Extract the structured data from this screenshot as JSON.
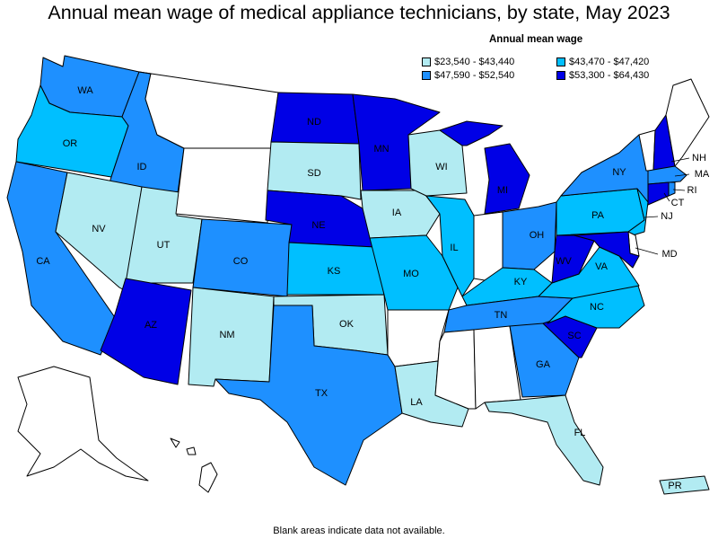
{
  "title": "Annual mean wage of medical appliance technicians, by state, May 2023",
  "footnote": "Blank areas indicate data not available.",
  "legend": {
    "title": "Annual mean wage",
    "items": [
      {
        "label": "$23,540 - $43,440",
        "color": "#b2ebf2"
      },
      {
        "label": "$43,470 - $47,420",
        "color": "#00bfff"
      },
      {
        "label": "$47,590 - $52,540",
        "color": "#1e90ff"
      },
      {
        "label": "$53,300 - $64,430",
        "color": "#0000e6"
      }
    ]
  },
  "colors": {
    "no_data": "#ffffff",
    "tier1": "#b2ebf2",
    "tier2": "#00bfff",
    "tier3": "#1e90ff",
    "tier4": "#0000e6",
    "border": "#000000"
  },
  "states": [
    {
      "abbr": "WA",
      "tier": "tier3"
    },
    {
      "abbr": "OR",
      "tier": "tier2"
    },
    {
      "abbr": "CA",
      "tier": "tier3"
    },
    {
      "abbr": "ID",
      "tier": "tier3"
    },
    {
      "abbr": "NV",
      "tier": "tier1"
    },
    {
      "abbr": "UT",
      "tier": "tier1"
    },
    {
      "abbr": "AZ",
      "tier": "tier4"
    },
    {
      "abbr": "CO",
      "tier": "tier3"
    },
    {
      "abbr": "NM",
      "tier": "tier1"
    },
    {
      "abbr": "ND",
      "tier": "tier4"
    },
    {
      "abbr": "SD",
      "tier": "tier1"
    },
    {
      "abbr": "NE",
      "tier": "tier4"
    },
    {
      "abbr": "KS",
      "tier": "tier2"
    },
    {
      "abbr": "OK",
      "tier": "tier1"
    },
    {
      "abbr": "TX",
      "tier": "tier3"
    },
    {
      "abbr": "MN",
      "tier": "tier4"
    },
    {
      "abbr": "IA",
      "tier": "tier1"
    },
    {
      "abbr": "MO",
      "tier": "tier2"
    },
    {
      "abbr": "WI",
      "tier": "tier1"
    },
    {
      "abbr": "IL",
      "tier": "tier2"
    },
    {
      "abbr": "MI",
      "tier": "tier4"
    },
    {
      "abbr": "OH",
      "tier": "tier3"
    },
    {
      "abbr": "KY",
      "tier": "tier2"
    },
    {
      "abbr": "TN",
      "tier": "tier3"
    },
    {
      "abbr": "LA",
      "tier": "tier1"
    },
    {
      "abbr": "GA",
      "tier": "tier3"
    },
    {
      "abbr": "FL",
      "tier": "tier1"
    },
    {
      "abbr": "SC",
      "tier": "tier4"
    },
    {
      "abbr": "NC",
      "tier": "tier2"
    },
    {
      "abbr": "VA",
      "tier": "tier2"
    },
    {
      "abbr": "WV",
      "tier": "tier4"
    },
    {
      "abbr": "PA",
      "tier": "tier2"
    },
    {
      "abbr": "NY",
      "tier": "tier3"
    },
    {
      "abbr": "NJ",
      "tier": "tier2"
    },
    {
      "abbr": "MD",
      "tier": "tier4"
    },
    {
      "abbr": "CT",
      "tier": "tier4"
    },
    {
      "abbr": "RI",
      "tier": "tier3"
    },
    {
      "abbr": "MA",
      "tier": "tier3"
    },
    {
      "abbr": "NH",
      "tier": "tier4"
    },
    {
      "abbr": "PR",
      "tier": "tier1"
    },
    {
      "abbr": "MT",
      "tier": "no_data"
    },
    {
      "abbr": "WY",
      "tier": "no_data"
    },
    {
      "abbr": "AR",
      "tier": "no_data"
    },
    {
      "abbr": "MS",
      "tier": "no_data"
    },
    {
      "abbr": "AL",
      "tier": "no_data"
    },
    {
      "abbr": "IN",
      "tier": "no_data"
    },
    {
      "abbr": "ME",
      "tier": "no_data"
    },
    {
      "abbr": "VT",
      "tier": "no_data"
    },
    {
      "abbr": "DE",
      "tier": "no_data"
    },
    {
      "abbr": "AK",
      "tier": "no_data"
    },
    {
      "abbr": "HI",
      "tier": "no_data"
    }
  ]
}
